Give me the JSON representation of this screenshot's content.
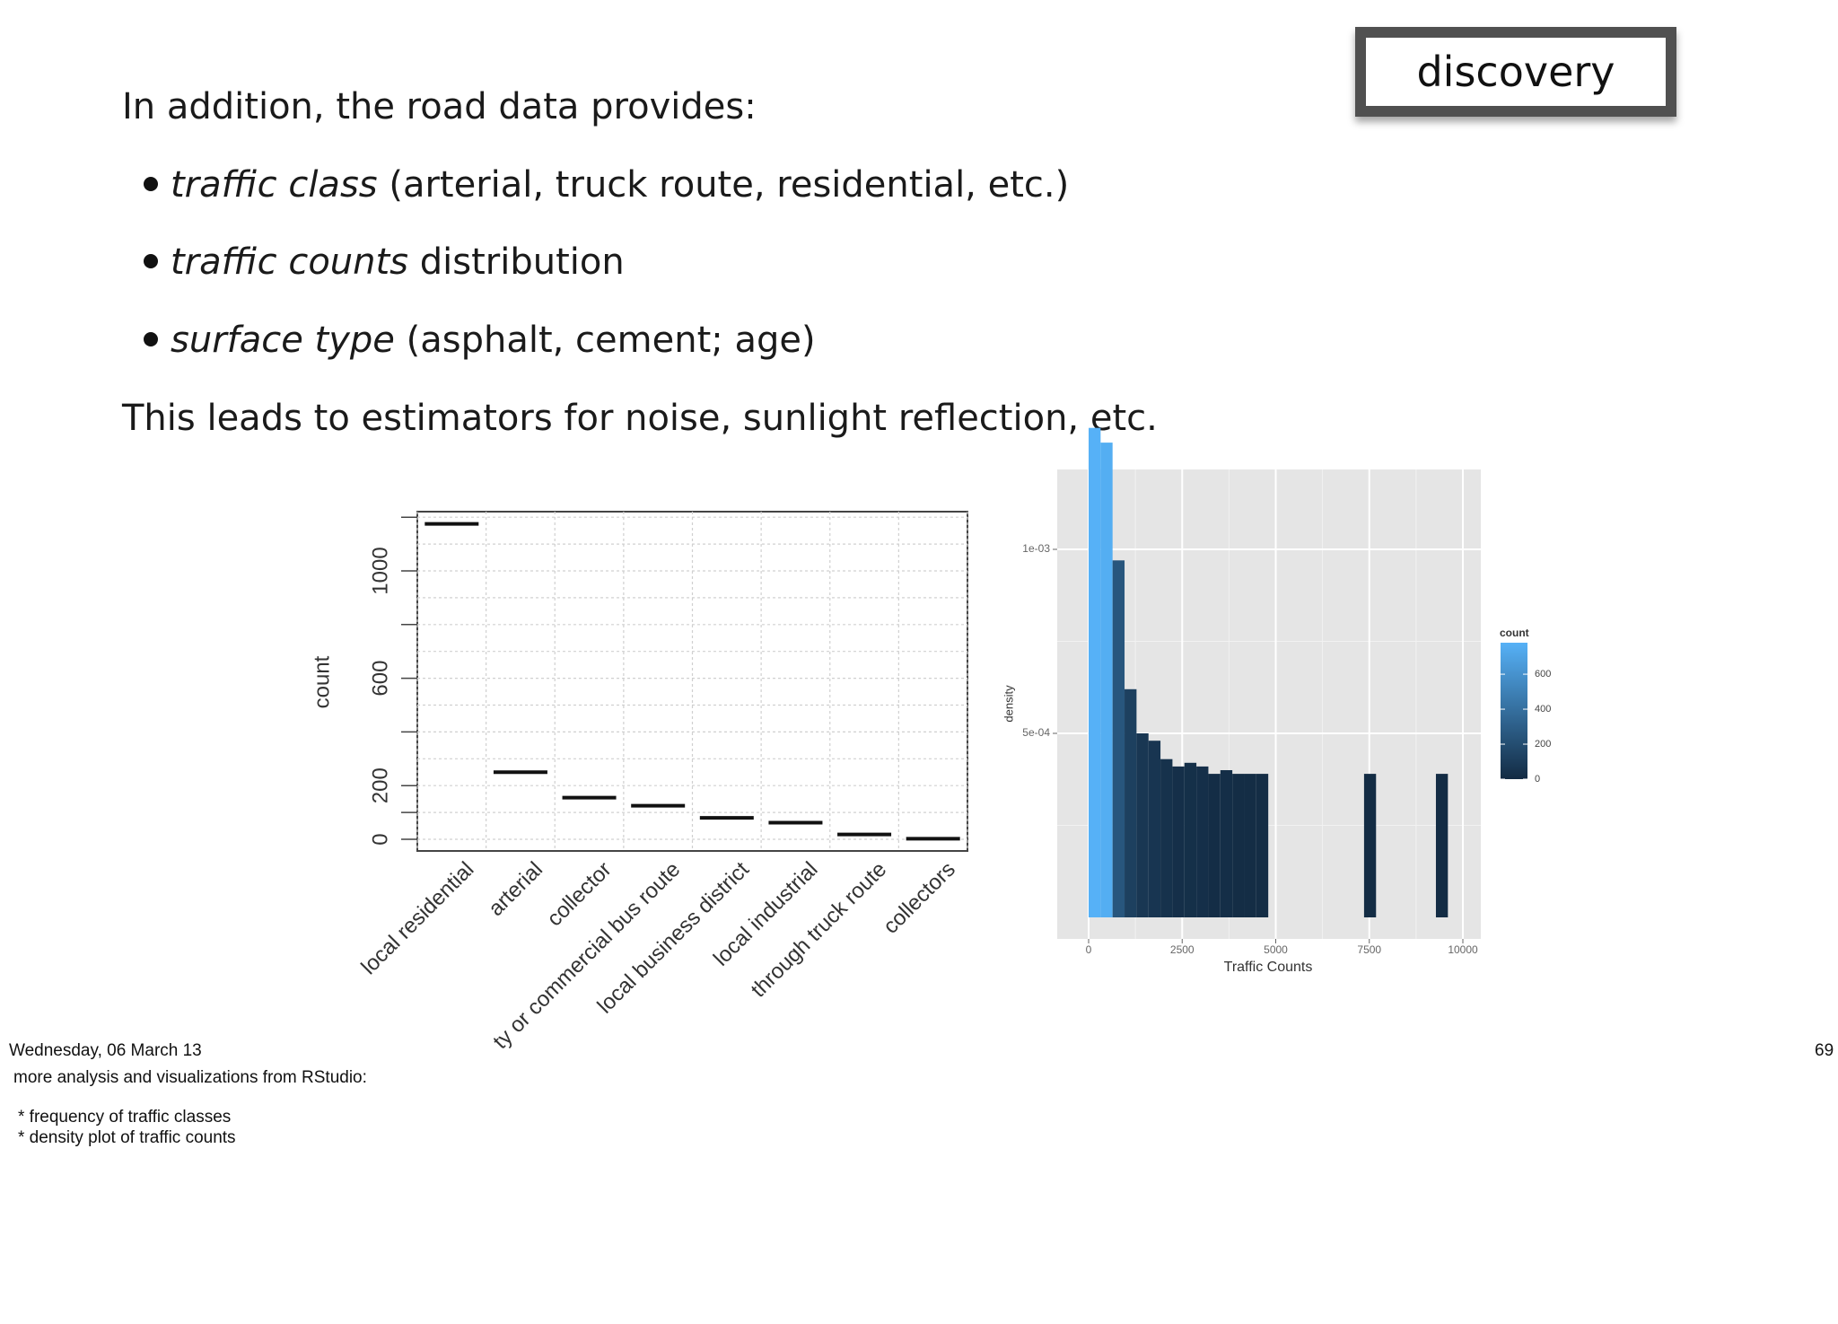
{
  "badge": {
    "label": "discovery"
  },
  "intro": "In addition, the road data provides:",
  "bullets": [
    {
      "term": "traffic class",
      "rest": " (arterial, truck route, residential, etc.)"
    },
    {
      "term": "traffic counts",
      "rest": " distribution"
    },
    {
      "term": "surface type",
      "rest": " (asphalt, cement; age)"
    }
  ],
  "conclusion": "This leads to estimators for noise, sunlight reflection, etc.",
  "footer": {
    "date": "Wednesday, 06 March 13",
    "page": "69",
    "notes": [
      "more analysis and visualizations from RStudio:",
      "* frequency of traffic classes",
      "* density plot of traffic counts"
    ]
  },
  "chart_data": [
    {
      "type": "bar",
      "ylabel": "count",
      "categories": [
        "local residential",
        "arterial",
        "collector",
        "ty or commercial bus route",
        "local business district",
        "local industrial",
        "through truck route",
        "collectors"
      ],
      "values": [
        1175,
        250,
        155,
        125,
        80,
        62,
        18,
        2
      ],
      "yticks": [
        "0",
        "200",
        "600",
        "1000"
      ],
      "ytick_values": [
        0,
        200,
        600,
        1000
      ],
      "ylim": [
        0,
        1200
      ],
      "grid": true
    },
    {
      "type": "bar",
      "xlabel": "Traffic Counts",
      "ylabel": "density",
      "xlim": [
        -500,
        10500
      ],
      "ylim": [
        0,
        0.00131
      ],
      "xticks": [
        "0",
        "2500",
        "5000",
        "7500",
        "10000"
      ],
      "xtick_values": [
        0,
        2500,
        5000,
        7500,
        10000
      ],
      "yticks": [
        "5e-04",
        "1e-03"
      ],
      "ytick_values": [
        0.0005,
        0.001
      ],
      "bin_width": 320,
      "bin_starts": [
        0,
        320,
        640,
        960,
        1280,
        1600,
        1920,
        2240,
        2560,
        2880,
        3200,
        3520,
        3840,
        4160,
        4480,
        7360,
        9280
      ],
      "density": [
        0.00133,
        0.00129,
        0.00097,
        0.00062,
        0.0005,
        0.00048,
        0.00043,
        0.00041,
        0.00042,
        0.00041,
        0.00039,
        0.0004,
        0.00039,
        0.00039,
        0.00039,
        0.00039,
        0.00039
      ],
      "counts": [
        780,
        760,
        250,
        120,
        70,
        60,
        40,
        25,
        28,
        25,
        12,
        16,
        10,
        10,
        10,
        3,
        3
      ],
      "legend": {
        "title": "count",
        "ticks": [
          "0",
          "200",
          "400",
          "600"
        ],
        "tick_values": [
          0,
          200,
          400,
          600
        ],
        "max": 780,
        "low_color": "#132b43",
        "high_color": "#56b1f7",
        "position": "right"
      },
      "grid": true
    }
  ]
}
